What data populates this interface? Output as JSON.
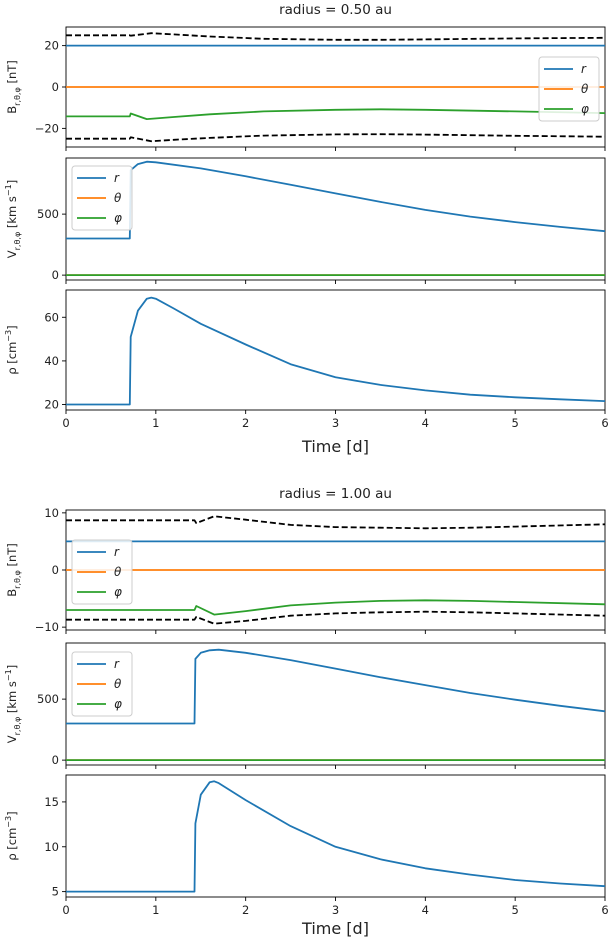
{
  "figures": [
    {
      "title": "radius = 0.50 au",
      "xlabel": "Time [d]",
      "xticks": [
        "0",
        "1",
        "2",
        "3",
        "4",
        "5",
        "6"
      ],
      "panels": [
        {
          "ylabel": "B_{r,θ,φ} [nT]",
          "yticks": [
            "20",
            "0",
            "−20"
          ],
          "legend": {
            "entries": [
              "r",
              "θ",
              "φ"
            ],
            "placement": "right"
          }
        },
        {
          "ylabel": "V_{r,θ,φ} [km s^{−1}]",
          "yticks": [
            "500",
            "0"
          ],
          "legend": {
            "entries": [
              "r",
              "θ",
              "φ"
            ],
            "placement": "top-left"
          }
        },
        {
          "ylabel": "ρ [cm^{−3}]",
          "yticks": [
            "60",
            "40",
            "20"
          ]
        }
      ]
    },
    {
      "title": "radius = 1.00 au",
      "xlabel": "Time [d]",
      "xticks": [
        "0",
        "1",
        "2",
        "3",
        "4",
        "5",
        "6"
      ],
      "panels": [
        {
          "ylabel": "B_{r,θ,φ} [nT]",
          "yticks": [
            "10",
            "0",
            "−10"
          ],
          "legend": {
            "entries": [
              "r",
              "θ",
              "φ"
            ],
            "placement": "left"
          }
        },
        {
          "ylabel": "V_{r,θ,φ} [km s^{−1}]",
          "yticks": [
            "500",
            "0"
          ],
          "legend": {
            "entries": [
              "r",
              "θ",
              "φ"
            ],
            "placement": "left"
          }
        },
        {
          "ylabel": "ρ [cm^{−3}]",
          "yticks": [
            "15",
            "10",
            "5"
          ]
        }
      ]
    }
  ],
  "colors": {
    "r": "#1f77b4",
    "theta": "#ff7f0e",
    "phi": "#2ca02c",
    "envelope": "#000000"
  },
  "chart_data": [
    {
      "type": "line",
      "title": "radius = 0.50 au",
      "xlabel": "Time [d]",
      "ylabel": "B_{r,θ,φ} [nT]",
      "xlim": [
        0,
        6
      ],
      "ylim": [
        -29,
        29
      ],
      "series": [
        {
          "name": "r",
          "x": [
            0,
            6
          ],
          "y": [
            20,
            20
          ]
        },
        {
          "name": "θ",
          "x": [
            0,
            6
          ],
          "y": [
            0,
            0
          ]
        },
        {
          "name": "φ",
          "x": [
            0,
            0.71,
            0.72,
            0.9,
            1.2,
            1.6,
            2.2,
            3.0,
            3.5,
            4.0,
            5.0,
            6.0
          ],
          "y": [
            -14.2,
            -14.2,
            -12.8,
            -15.5,
            -14.5,
            -13.2,
            -11.8,
            -11.0,
            -10.8,
            -11.0,
            -11.8,
            -12.6
          ]
        },
        {
          "x": [
            0,
            0.71,
            0.72,
            0.95,
            1.2,
            1.6,
            2.2,
            3.0,
            3.5,
            4.0,
            5.0,
            6.0
          ],
          "y": [
            25.0,
            25.0,
            24.8,
            26.0,
            25.4,
            24.4,
            23.3,
            22.8,
            22.8,
            23.0,
            23.5,
            23.8
          ]
        },
        {
          "x": [
            0,
            0.71,
            0.72,
            0.95,
            1.2,
            1.6,
            2.2,
            3.0,
            3.5,
            4.0,
            5.0,
            6.0
          ],
          "y": [
            -25.0,
            -25.0,
            -24.3,
            -26.2,
            -25.5,
            -24.6,
            -23.5,
            -22.9,
            -22.8,
            -23.0,
            -23.6,
            -24.0
          ]
        }
      ]
    },
    {
      "type": "line",
      "title": "",
      "xlabel": "Time [d]",
      "ylabel": "V_{r,θ,φ} [km s^{−1}]",
      "xlim": [
        0,
        6
      ],
      "ylim": [
        -40,
        960
      ],
      "series": [
        {
          "name": "r",
          "x": [
            0,
            0.71,
            0.72,
            0.8,
            0.9,
            1.0,
            1.5,
            2.0,
            2.5,
            3.0,
            3.5,
            4.0,
            4.5,
            5.0,
            5.5,
            6.0
          ],
          "y": [
            300,
            300,
            860,
            910,
            930,
            925,
            875,
            810,
            740,
            670,
            600,
            535,
            480,
            435,
            395,
            360
          ]
        },
        {
          "name": "θ",
          "x": [
            0,
            6
          ],
          "y": [
            0,
            0
          ]
        },
        {
          "name": "φ",
          "x": [
            0,
            6
          ],
          "y": [
            0,
            0
          ]
        }
      ]
    },
    {
      "type": "line",
      "title": "",
      "xlabel": "Time [d]",
      "ylabel": "ρ [cm^{−3}]",
      "xlim": [
        0,
        6
      ],
      "ylim": [
        17.5,
        72.5
      ],
      "series": [
        {
          "name": "",
          "x": [
            0,
            0.71,
            0.72,
            0.8,
            0.9,
            0.95,
            1.0,
            1.2,
            1.5,
            2.0,
            2.5,
            3.0,
            3.5,
            4.0,
            4.5,
            5.0,
            5.5,
            6.0
          ],
          "y": [
            20,
            20,
            51,
            63,
            68.5,
            69,
            68.5,
            64,
            57,
            47.5,
            38.5,
            32.5,
            29,
            26.5,
            24.5,
            23.3,
            22.4,
            21.6
          ]
        }
      ]
    },
    {
      "type": "line",
      "title": "radius = 1.00 au",
      "xlabel": "Time [d]",
      "ylabel": "B_{r,θ,φ} [nT]",
      "xlim": [
        0,
        6
      ],
      "ylim": [
        -10.5,
        10.5
      ],
      "series": [
        {
          "name": "r",
          "x": [
            0,
            6
          ],
          "y": [
            5,
            5
          ]
        },
        {
          "name": "θ",
          "x": [
            0,
            6
          ],
          "y": [
            0,
            0
          ]
        },
        {
          "name": "φ",
          "x": [
            0,
            1.43,
            1.45,
            1.65,
            2.0,
            2.5,
            3.0,
            3.5,
            4.0,
            4.5,
            5.0,
            6.0
          ],
          "y": [
            -7.0,
            -7.0,
            -6.3,
            -7.8,
            -7.2,
            -6.2,
            -5.7,
            -5.4,
            -5.3,
            -5.4,
            -5.6,
            -6.0
          ]
        },
        {
          "x": [
            0,
            1.43,
            1.45,
            1.65,
            2.0,
            2.5,
            3.0,
            3.5,
            4.0,
            4.5,
            5.0,
            6.0
          ],
          "y": [
            8.7,
            8.7,
            8.2,
            9.4,
            8.8,
            7.9,
            7.5,
            7.4,
            7.3,
            7.4,
            7.6,
            8.0
          ]
        },
        {
          "x": [
            0,
            1.43,
            1.45,
            1.65,
            2.0,
            2.5,
            3.0,
            3.5,
            4.0,
            4.5,
            5.0,
            6.0
          ],
          "y": [
            -8.7,
            -8.7,
            -8.2,
            -9.4,
            -8.9,
            -8.0,
            -7.6,
            -7.4,
            -7.3,
            -7.4,
            -7.6,
            -8.0
          ]
        }
      ]
    },
    {
      "type": "line",
      "title": "",
      "xlabel": "Time [d]",
      "ylabel": "V_{r,θ,φ} [km s^{−1}]",
      "xlim": [
        0,
        6
      ],
      "ylim": [
        -40,
        960
      ],
      "series": [
        {
          "name": "r",
          "x": [
            0,
            1.43,
            1.44,
            1.5,
            1.6,
            1.7,
            2.0,
            2.5,
            3.0,
            3.5,
            4.0,
            4.5,
            5.0,
            5.5,
            6.0
          ],
          "y": [
            300,
            300,
            830,
            880,
            900,
            905,
            880,
            820,
            750,
            680,
            615,
            550,
            495,
            445,
            400
          ]
        },
        {
          "name": "θ",
          "x": [
            0,
            6
          ],
          "y": [
            0,
            0
          ]
        },
        {
          "name": "φ",
          "x": [
            0,
            6
          ],
          "y": [
            0,
            0
          ]
        }
      ]
    },
    {
      "type": "line",
      "title": "",
      "xlabel": "Time [d]",
      "ylabel": "ρ [cm^{−3}]",
      "xlim": [
        0,
        6
      ],
      "ylim": [
        4.4,
        18.0
      ],
      "series": [
        {
          "name": "",
          "x": [
            0,
            1.43,
            1.44,
            1.5,
            1.6,
            1.65,
            1.7,
            2.0,
            2.5,
            3.0,
            3.5,
            4.0,
            4.5,
            5.0,
            5.5,
            6.0
          ],
          "y": [
            5,
            5,
            12.6,
            15.8,
            17.2,
            17.3,
            17.1,
            15.2,
            12.3,
            10.0,
            8.6,
            7.6,
            6.9,
            6.3,
            5.9,
            5.6
          ]
        }
      ]
    }
  ]
}
